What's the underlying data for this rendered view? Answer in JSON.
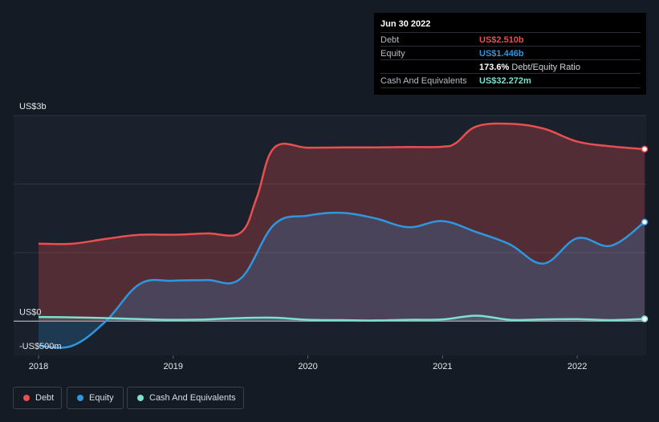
{
  "tooltip": {
    "date": "Jun 30 2022",
    "rows": [
      {
        "label": "Debt",
        "value": "US$2.510b",
        "color": "#e84f4f"
      },
      {
        "label": "Equity",
        "value": "US$1.446b",
        "color": "#2f96e0"
      },
      {
        "label": "",
        "value": "173.6%",
        "extra": "Debt/Equity Ratio",
        "color": "#ffffff"
      },
      {
        "label": "Cash And Equivalents",
        "value": "US$32.272m",
        "color": "#7ee0cf"
      }
    ]
  },
  "legend": [
    {
      "label": "Debt",
      "color": "#e84f4f"
    },
    {
      "label": "Equity",
      "color": "#2f96e0"
    },
    {
      "label": "Cash And Equivalents",
      "color": "#7ee0cf"
    }
  ],
  "chart_data": {
    "type": "area",
    "ylim": [
      -500000000,
      3000000000
    ],
    "y_tick_labels": [
      {
        "label": "US$3b",
        "value": 3000000000
      },
      {
        "label": "US$0",
        "value": 0
      },
      {
        "label": "-US$500m",
        "value": -500000000
      }
    ],
    "x_tick_labels": [
      "2018",
      "2019",
      "2020",
      "2021",
      "2022"
    ],
    "xlim": [
      2018.0,
      2022.5
    ],
    "grid": true,
    "legend_position": "bottom-left",
    "series": [
      {
        "name": "Debt",
        "color": "#e84f4f",
        "x": [
          2018.0,
          2018.25,
          2018.5,
          2018.75,
          2019.0,
          2019.25,
          2019.5,
          2019.62,
          2019.75,
          2020.0,
          2020.25,
          2020.5,
          2020.75,
          2021.0,
          2021.1,
          2021.25,
          2021.5,
          2021.75,
          2022.0,
          2022.25,
          2022.5
        ],
        "values": [
          1130000000,
          1130000000,
          1200000000,
          1260000000,
          1260000000,
          1280000000,
          1290000000,
          1800000000,
          2530000000,
          2530000000,
          2535000000,
          2535000000,
          2540000000,
          2545000000,
          2600000000,
          2840000000,
          2880000000,
          2810000000,
          2620000000,
          2550000000,
          2510000000
        ]
      },
      {
        "name": "Equity",
        "color": "#2f96e0",
        "x": [
          2018.0,
          2018.25,
          2018.5,
          2018.75,
          2019.0,
          2019.25,
          2019.5,
          2019.75,
          2020.0,
          2020.25,
          2020.5,
          2020.75,
          2021.0,
          2021.25,
          2021.5,
          2021.75,
          2022.0,
          2022.25,
          2022.5
        ],
        "values": [
          -360000000,
          -360000000,
          0,
          540000000,
          590000000,
          600000000,
          620000000,
          1410000000,
          1540000000,
          1580000000,
          1500000000,
          1370000000,
          1460000000,
          1300000000,
          1120000000,
          840000000,
          1210000000,
          1100000000,
          1446000000
        ]
      },
      {
        "name": "Cash And Equivalents",
        "color": "#7ee0cf",
        "x": [
          2018.0,
          2018.25,
          2018.5,
          2018.75,
          2019.0,
          2019.25,
          2019.5,
          2019.75,
          2020.0,
          2020.25,
          2020.5,
          2020.75,
          2021.0,
          2021.25,
          2021.5,
          2021.75,
          2022.0,
          2022.25,
          2022.5
        ],
        "values": [
          60000000,
          55000000,
          45000000,
          30000000,
          20000000,
          25000000,
          45000000,
          50000000,
          20000000,
          15000000,
          10000000,
          20000000,
          25000000,
          80000000,
          20000000,
          25000000,
          30000000,
          15000000,
          32272000
        ]
      }
    ]
  }
}
